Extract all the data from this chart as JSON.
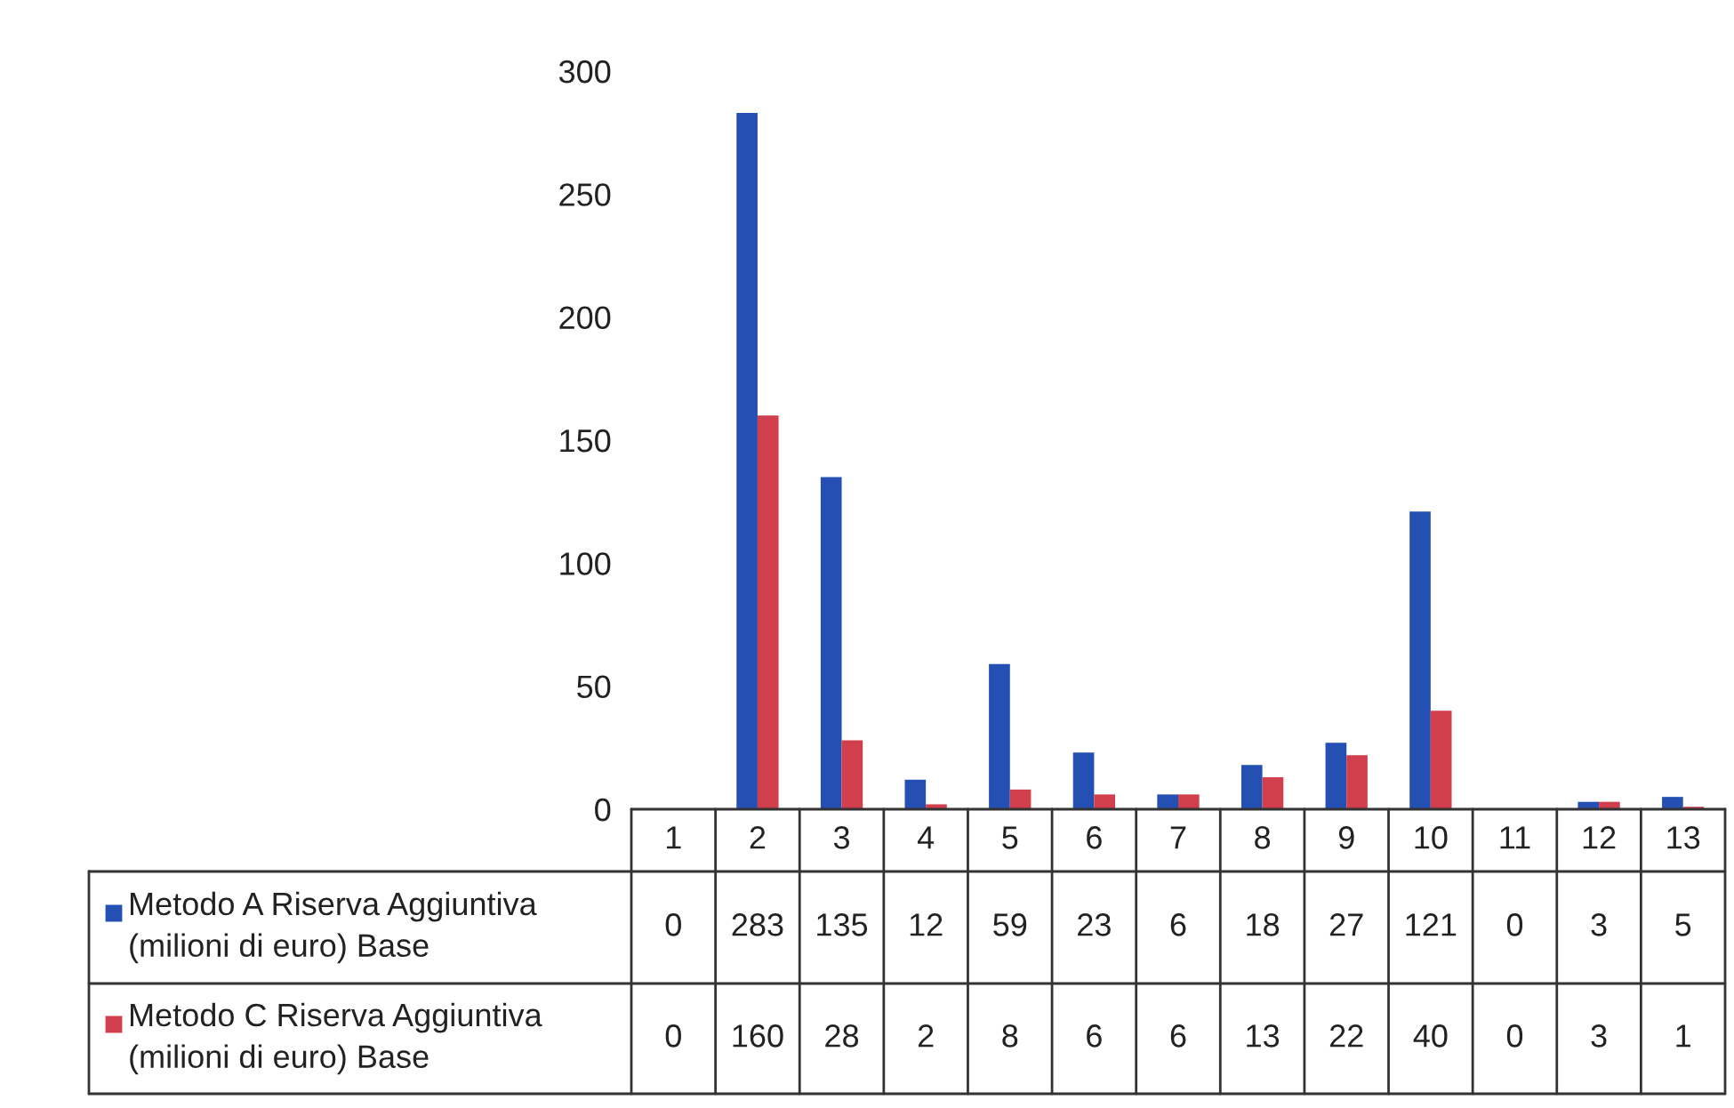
{
  "chart_data": {
    "type": "bar",
    "categories": [
      "1",
      "2",
      "3",
      "4",
      "5",
      "6",
      "7",
      "8",
      "9",
      "10",
      "11",
      "12",
      "13"
    ],
    "series": [
      {
        "name": "Metodo A Riserva Aggiuntiva (milioni di euro) Base",
        "color": "#2450b4",
        "values": [
          0,
          283,
          135,
          12,
          59,
          23,
          6,
          18,
          27,
          121,
          0,
          3,
          5
        ]
      },
      {
        "name": "Metodo C Riserva Aggiuntiva (milioni di euro) Base",
        "color": "#d23f4c",
        "values": [
          0,
          160,
          28,
          2,
          8,
          6,
          6,
          13,
          22,
          40,
          0,
          3,
          1
        ]
      }
    ],
    "ylim": [
      0,
      300
    ],
    "yticks": [
      0,
      50,
      100,
      150,
      200,
      250,
      300
    ],
    "grid": false,
    "data_labels": true,
    "legend": "bottom left"
  }
}
